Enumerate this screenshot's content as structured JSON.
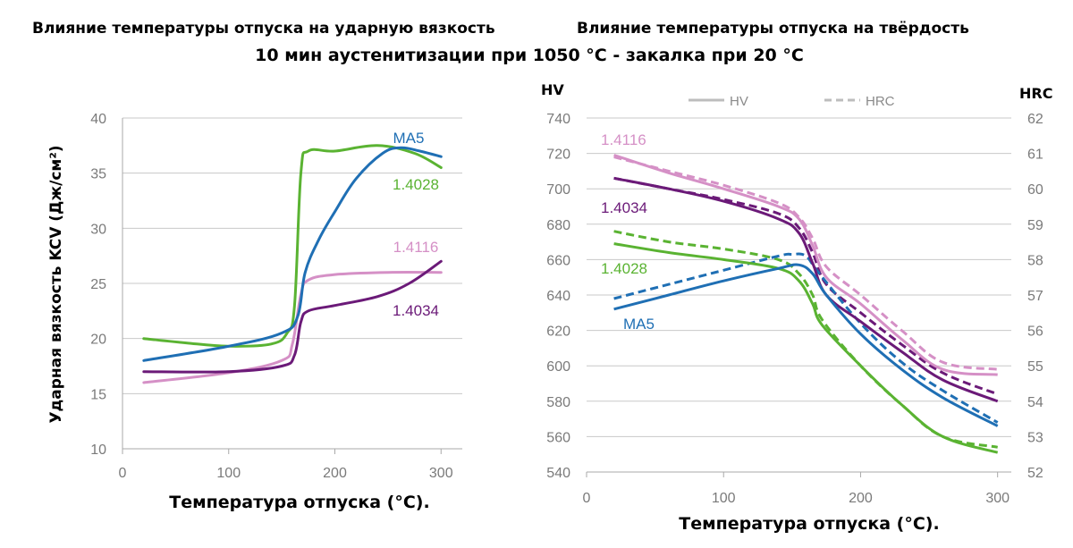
{
  "titles": {
    "left": "Влияние температуры отпуска на ударную вязкость",
    "right": "Влияние температуры отпуска на твёрдость",
    "subtitle": "10 мин аустенитизации при 1050 °C - закалка при 20 °C"
  },
  "colors": {
    "MA5": "#1f6fb4",
    "1.4028": "#5ab332",
    "1.4116": "#d590c6",
    "1.4034": "#6b1a78",
    "legend": "#bdbdbd",
    "grid": "#c8c8c8"
  },
  "chart_data": [
    {
      "type": "line",
      "xlabel": "Температура отпуска (°C).",
      "ylabel": "Ударная вязкость KCV (Дж/см²)",
      "xlim": [
        0,
        320
      ],
      "ylim": [
        10,
        40
      ],
      "xticks": [
        0,
        100,
        200,
        300
      ],
      "yticks": [
        10,
        15,
        20,
        25,
        30,
        35,
        40
      ],
      "grid": true,
      "series": [
        {
          "name": "MA5",
          "x": [
            20,
            100,
            150,
            165,
            172,
            185,
            200,
            220,
            245,
            262,
            280,
            300
          ],
          "y": [
            18.0,
            19.3,
            20.5,
            22.0,
            26.0,
            29.0,
            31.5,
            34.5,
            36.8,
            37.3,
            37.0,
            36.5
          ]
        },
        {
          "name": "1.4028",
          "x": [
            20,
            60,
            100,
            140,
            155,
            162,
            168,
            175,
            200,
            240,
            275,
            300
          ],
          "y": [
            20.0,
            19.6,
            19.3,
            19.5,
            20.5,
            23.0,
            35.0,
            37.0,
            37.0,
            37.5,
            36.8,
            35.5
          ]
        },
        {
          "name": "1.4116",
          "x": [
            20,
            100,
            150,
            160,
            168,
            175,
            200,
            250,
            300
          ],
          "y": [
            16.0,
            16.9,
            18.0,
            19.5,
            24.0,
            25.3,
            25.8,
            26.0,
            26.0
          ]
        },
        {
          "name": "1.4034",
          "x": [
            20,
            100,
            150,
            162,
            168,
            175,
            200,
            240,
            270,
            300
          ],
          "y": [
            17.0,
            17.0,
            17.5,
            18.5,
            21.5,
            22.5,
            23.0,
            23.8,
            25.0,
            27.0
          ]
        }
      ]
    },
    {
      "type": "line",
      "xlabel": "Температура отпуска (°C).",
      "ylabel_left": "HV",
      "ylabel_right": "HRC",
      "xlim": [
        0,
        310
      ],
      "ylim_left": [
        540,
        740
      ],
      "ylim_right": [
        52,
        62
      ],
      "xticks": [
        0,
        100,
        200,
        300
      ],
      "yticks_left": [
        540,
        560,
        580,
        600,
        620,
        640,
        660,
        680,
        700,
        720,
        740
      ],
      "yticks_right": [
        52,
        53,
        54,
        55,
        56,
        57,
        58,
        59,
        60,
        61,
        62
      ],
      "grid": true,
      "legend": [
        {
          "label": "HV",
          "style": "solid"
        },
        {
          "label": "HRC",
          "style": "dashed"
        }
      ],
      "series": [
        {
          "name": "1.4116",
          "metric": "HV",
          "x": [
            20,
            60,
            100,
            140,
            155,
            165,
            175,
            200,
            230,
            260,
            300
          ],
          "y": [
            719,
            709,
            700,
            690,
            683,
            668,
            650,
            635,
            615,
            598,
            595
          ]
        },
        {
          "name": "1.4116",
          "metric": "HRC",
          "x": [
            20,
            60,
            100,
            140,
            155,
            165,
            175,
            200,
            230,
            260,
            300
          ],
          "y": [
            60.9,
            60.5,
            60.1,
            59.6,
            59.2,
            58.6,
            57.8,
            57.0,
            56.0,
            55.1,
            54.9
          ]
        },
        {
          "name": "1.4034",
          "metric": "HV",
          "x": [
            20,
            60,
            100,
            140,
            155,
            165,
            175,
            200,
            230,
            260,
            300
          ],
          "y": [
            706,
            700,
            693,
            683,
            675,
            658,
            640,
            625,
            608,
            592,
            580
          ]
        },
        {
          "name": "1.4034",
          "metric": "HRC",
          "x": [
            20,
            60,
            100,
            140,
            155,
            165,
            175,
            200,
            230,
            260,
            300
          ],
          "y": [
            60.3,
            60.0,
            59.7,
            59.3,
            58.9,
            58.2,
            57.3,
            56.5,
            55.6,
            54.8,
            54.2
          ]
        },
        {
          "name": "1.4028",
          "metric": "HV",
          "x": [
            20,
            60,
            100,
            140,
            155,
            165,
            172,
            200,
            230,
            260,
            300
          ],
          "y": [
            669,
            664,
            660,
            655,
            648,
            635,
            623,
            600,
            578,
            560,
            551
          ]
        },
        {
          "name": "1.4028",
          "metric": "HRC",
          "x": [
            20,
            60,
            100,
            140,
            155,
            165,
            172,
            200,
            230,
            260,
            300
          ],
          "y": [
            58.8,
            58.5,
            58.3,
            58.0,
            57.6,
            57.0,
            56.3,
            55.0,
            53.9,
            53.0,
            52.7
          ]
        },
        {
          "name": "MA5",
          "metric": "HV",
          "x": [
            20,
            60,
            100,
            140,
            155,
            165,
            175,
            200,
            230,
            260,
            300
          ],
          "y": [
            632,
            640,
            648,
            655,
            657,
            652,
            640,
            618,
            598,
            582,
            566
          ]
        },
        {
          "name": "MA5",
          "metric": "HRC",
          "x": [
            20,
            60,
            100,
            140,
            150,
            160,
            170,
            200,
            230,
            260,
            300
          ],
          "y": [
            56.9,
            57.3,
            57.7,
            58.1,
            58.15,
            58.1,
            57.6,
            56.2,
            55.1,
            54.3,
            53.4
          ]
        }
      ]
    }
  ],
  "labels_left": [
    {
      "series": "MA5",
      "text": "MA5"
    },
    {
      "series": "1.4028",
      "text": "1.4028"
    },
    {
      "series": "1.4116",
      "text": "1.4116"
    },
    {
      "series": "1.4034",
      "text": "1.4034"
    }
  ],
  "labels_right": [
    {
      "series": "1.4116",
      "text": "1.4116"
    },
    {
      "series": "1.4034",
      "text": "1.4034"
    },
    {
      "series": "1.4028",
      "text": "1.4028"
    },
    {
      "series": "MA5",
      "text": "MA5"
    }
  ]
}
